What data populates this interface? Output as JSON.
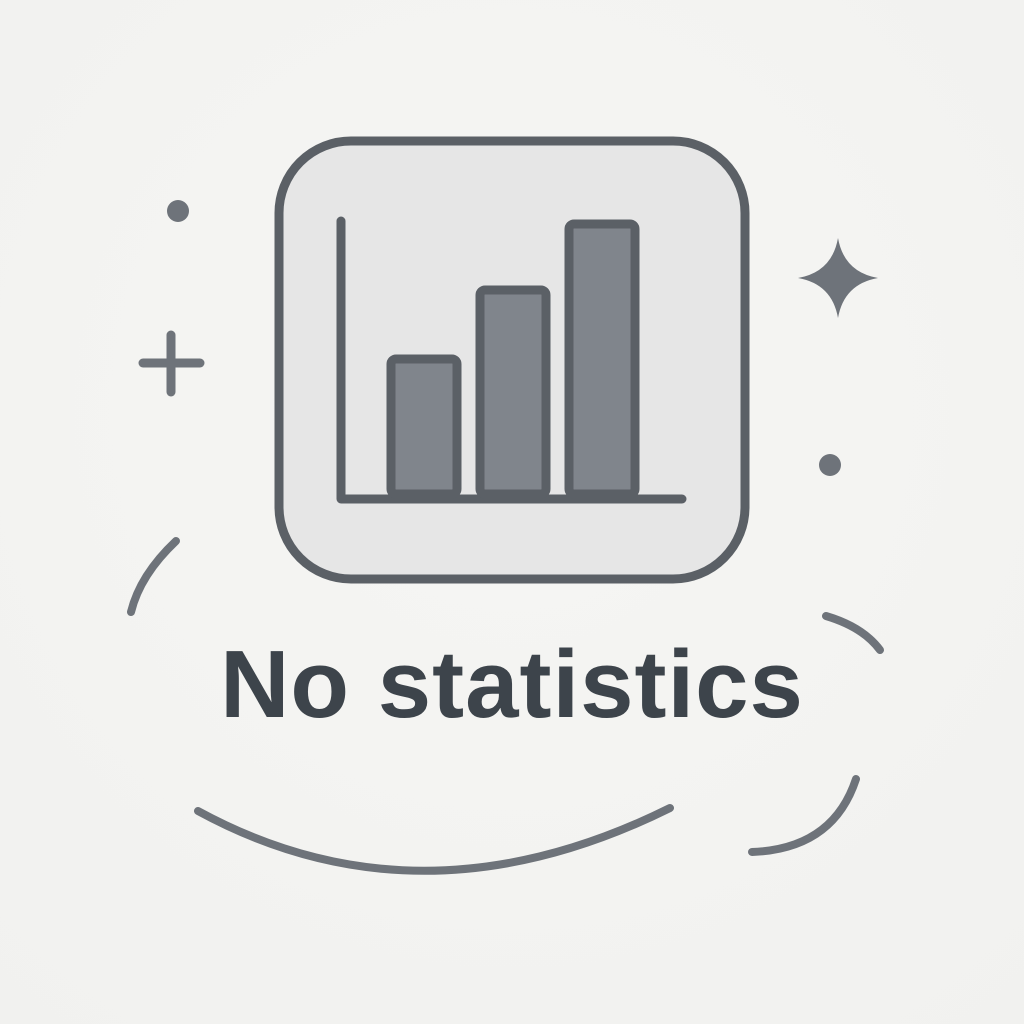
{
  "empty_state": {
    "title": "No statistics",
    "icon": "bar-chart-icon",
    "mini_chart_levels": [
      0.45,
      0.68,
      0.9
    ]
  },
  "decorations": [
    "dot-icon",
    "plus-icon",
    "sparkle-icon",
    "arc-icon"
  ],
  "colors": {
    "background": "#f3f3f1",
    "card_fill": "#e6e6e6",
    "stroke": "#5b6066",
    "bar_fill": "#80858c",
    "text": "#3d444b",
    "decor": "#6e737a"
  }
}
